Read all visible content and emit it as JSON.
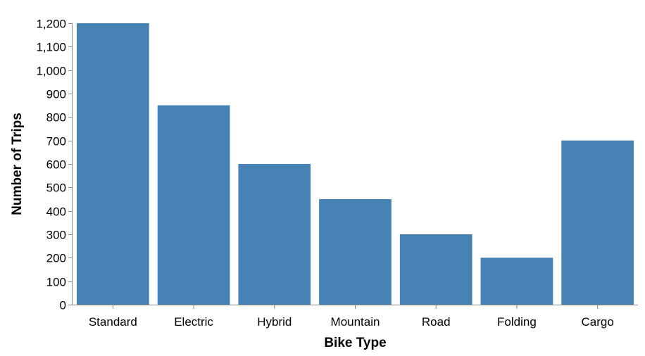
{
  "chart_data": {
    "type": "bar",
    "title": "",
    "xlabel": "Bike Type",
    "ylabel": "Number of Trips",
    "categories": [
      "Standard",
      "Electric",
      "Hybrid",
      "Mountain",
      "Road",
      "Folding",
      "Cargo"
    ],
    "values": [
      1200,
      850,
      600,
      450,
      300,
      200,
      700
    ],
    "ylim": [
      0,
      1200
    ],
    "yticks": [
      0,
      100,
      200,
      300,
      400,
      500,
      600,
      700,
      800,
      900,
      1000,
      1100,
      1200
    ],
    "ytick_labels": [
      "0",
      "100",
      "200",
      "300",
      "400",
      "500",
      "600",
      "700",
      "800",
      "900",
      "1,000",
      "1,100",
      "1,200"
    ],
    "grid": false,
    "legend": "none",
    "bar_color": "#4682b4"
  }
}
